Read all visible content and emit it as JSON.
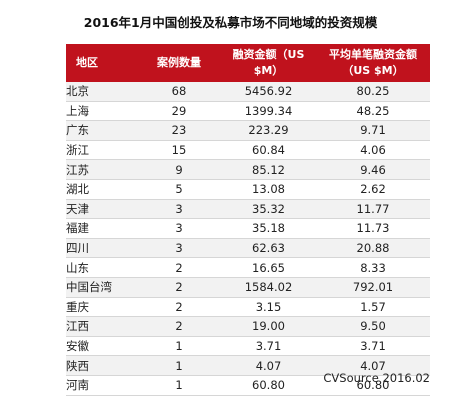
{
  "title": "2016年1月中国创投及私募市场不同地域的投资规模",
  "table": {
    "headers": {
      "region": "地区",
      "count": "案例数量",
      "amount_line1": "融资金额（US",
      "amount_line2": "$M）",
      "avg_line1": "平均单笔融资金额",
      "avg_line2": "（US $M）"
    },
    "rows": [
      {
        "region": "北京",
        "count": "68",
        "amount": "5456.92",
        "avg": "80.25"
      },
      {
        "region": "上海",
        "count": "29",
        "amount": "1399.34",
        "avg": "48.25"
      },
      {
        "region": "广东",
        "count": "23",
        "amount": "223.29",
        "avg": "9.71"
      },
      {
        "region": "浙江",
        "count": "15",
        "amount": "60.84",
        "avg": "4.06"
      },
      {
        "region": "江苏",
        "count": "9",
        "amount": "85.12",
        "avg": "9.46"
      },
      {
        "region": "湖北",
        "count": "5",
        "amount": "13.08",
        "avg": "2.62"
      },
      {
        "region": "天津",
        "count": "3",
        "amount": "35.32",
        "avg": "11.77"
      },
      {
        "region": "福建",
        "count": "3",
        "amount": "35.18",
        "avg": "11.73"
      },
      {
        "region": "四川",
        "count": "3",
        "amount": "62.63",
        "avg": "20.88"
      },
      {
        "region": "山东",
        "count": "2",
        "amount": "16.65",
        "avg": "8.33"
      },
      {
        "region": "中国台湾",
        "count": "2",
        "amount": "1584.02",
        "avg": "792.01"
      },
      {
        "region": "重庆",
        "count": "2",
        "amount": "3.15",
        "avg": "1.57"
      },
      {
        "region": "江西",
        "count": "2",
        "amount": "19.00",
        "avg": "9.50"
      },
      {
        "region": "安徽",
        "count": "1",
        "amount": "3.71",
        "avg": "3.71"
      },
      {
        "region": "陕西",
        "count": "1",
        "amount": "4.07",
        "avg": "4.07"
      },
      {
        "region": "河南",
        "count": "1",
        "amount": "60.80",
        "avg": "60.80"
      }
    ]
  },
  "source": "CVSource 2016.02",
  "colors": {
    "header_bg": "#c0121d",
    "header_text": "#ffffff",
    "stripe": "#f2f2f2"
  }
}
